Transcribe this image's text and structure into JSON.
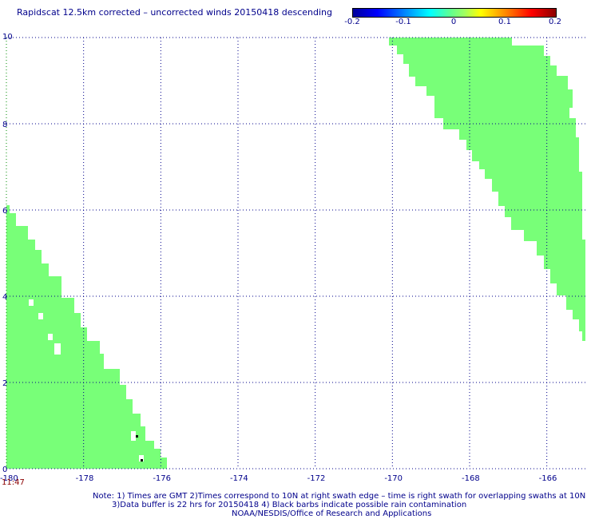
{
  "title": "Rapidscat 12.5km corrected – uncorrected winds 20150418 descending",
  "colorbar": {
    "ticks": [
      "-0.2",
      "-0.1",
      "0",
      "0.1",
      "0.2"
    ]
  },
  "axes": {
    "x_ticks": [
      "-180",
      "-178",
      "-176",
      "-174",
      "-172",
      "-170",
      "-168",
      "-166"
    ],
    "y_ticks": [
      "0",
      "2",
      "4",
      "6",
      "8",
      "10"
    ],
    "x_range": [
      -180,
      -165
    ],
    "y_range": [
      0,
      10
    ]
  },
  "timestamp": "11:47",
  "notes": {
    "line1": "Note: 1) Times are GMT 2)Times correspond to 10N at right swath edge – time is right swath for overlapping swaths at 10N",
    "line2": "3)Data buffer is 22 hrs for 20150418 4) Black barbs indicate possible rain contamination",
    "line3": "NOAA/NESDIS/Office of Research and Applications"
  },
  "colors": {
    "swath": "#78ff78",
    "grid": "#00008b",
    "rain_flag": "#000000"
  }
}
